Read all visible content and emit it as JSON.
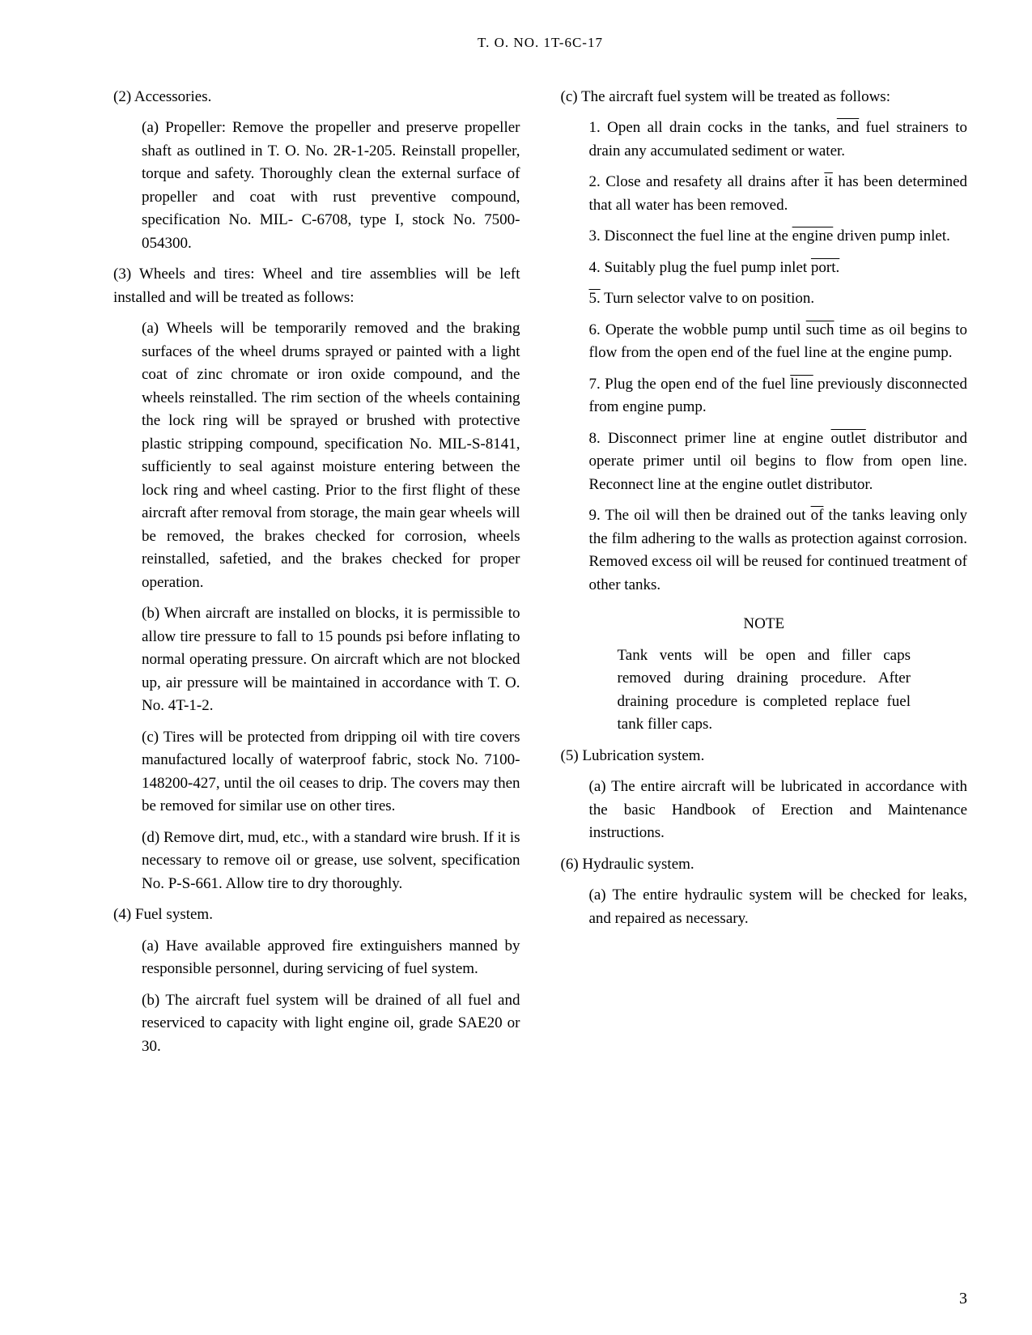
{
  "header": "T. O. NO. 1T-6C-17",
  "col1": {
    "item2": "(2)   Accessories.",
    "item2a": "(a)   Propeller: Remove the propeller and preserve propeller shaft as outlined in T. O. No. 2R-1-205. Reinstall propeller, torque and safety. Thoroughly clean the external surface of propeller and coat with rust preventive compound, specification No. MIL- C-6708, type I, stock No. 7500-054300.",
    "item3": "(3)   Wheels and tires: Wheel and tire assemblies will be left installed and will be treated as follows:",
    "item3a": "(a)   Wheels will be temporarily removed and the braking surfaces of the wheel drums sprayed or painted with a light coat of zinc chromate or iron oxide compound, and the wheels reinstalled. The rim section of the wheels containing the lock ring will be sprayed or brushed with protective plastic stripping compound, specification No. MIL-S-8141, sufficiently to seal against moisture entering between the lock ring and wheel casting. Prior to the first flight of these aircraft after removal from storage, the main gear wheels will be removed, the brakes checked for corrosion, wheels reinstalled, safetied, and the brakes checked for proper operation.",
    "item3b": "(b)   When aircraft are installed on blocks, it is permissible to allow tire pressure to fall to 15 pounds psi before inflating to normal operating pressure. On aircraft which are not blocked up, air pressure will be maintained in accordance with T. O. No. 4T-1-2.",
    "item3c": "(c)   Tires will be protected from dripping oil with tire covers manufactured locally of waterproof fabric, stock No. 7100-148200-427, until the oil ceases to drip. The covers may then be removed for similar use on other tires.",
    "item3d": "(d)   Remove dirt, mud, etc., with a standard wire brush. If it is necessary to remove oil or grease, use solvent, specification No. P-S-661. Allow tire to dry thoroughly.",
    "item4": "(4)   Fuel system.",
    "item4a": "(a)   Have available approved fire extinguishers manned by responsible personnel, during servicing of fuel system.",
    "item4b": "(b)   The aircraft fuel system will be drained of all fuel and reserviced to capacity with light engine oil, grade SAE20 or 30."
  },
  "col2": {
    "item4c": "(c)   The aircraft fuel system will be treated as follows:",
    "n1_pre": "1.   Open all drain cocks in the tanks, ",
    "n1_over": "and",
    "n1_post": " fuel strainers to drain any accumulated sediment or water.",
    "n2_pre": "2.   Close and resafety all drains after ",
    "n2_over": "it",
    "n2_post": " has been determined that all water has been removed.",
    "n3_pre": "3.   Disconnect the fuel line at the ",
    "n3_over": "engine",
    "n3_post": " driven pump inlet.",
    "n4_pre": "4.   Suitably plug the fuel pump inlet ",
    "n4_over": "port.",
    "n4_post": "",
    "n5_pre": "5.",
    "n5_post": "   Turn selector valve to on position.",
    "n6_pre": "6.   Operate the wobble pump until ",
    "n6_over": "such",
    "n6_post": " time as oil begins to flow from the open end of the fuel line at the engine pump.",
    "n7_pre": "7.   Plug the open end of the fuel ",
    "n7_over": "line",
    "n7_post": " previously disconnected from engine pump.",
    "n8_pre": "8.   Disconnect primer line at engine ",
    "n8_over": "outlet",
    "n8_post": " distributor and operate primer until oil begins to flow from open line. Reconnect line at the engine outlet distributor.",
    "n9_pre": "9.   The oil will then be drained out ",
    "n9_over": "of",
    "n9_post": " the tanks leaving only the film adhering to the walls as protection against corrosion. Removed excess oil will be reused for continued treatment of other tanks.",
    "note_heading": "NOTE",
    "note_body": "Tank vents will be open and filler caps removed during draining procedure. After draining procedure is completed replace fuel tank filler caps.",
    "item5": "(5)   Lubrication system.",
    "item5a": "(a)   The entire aircraft will be lubricated in accordance with the basic Handbook of Erection and Maintenance instructions.",
    "item6": "(6)   Hydraulic system.",
    "item6a": "(a)   The entire hydraulic system will be checked for leaks, and repaired as necessary."
  },
  "page_num": "3"
}
